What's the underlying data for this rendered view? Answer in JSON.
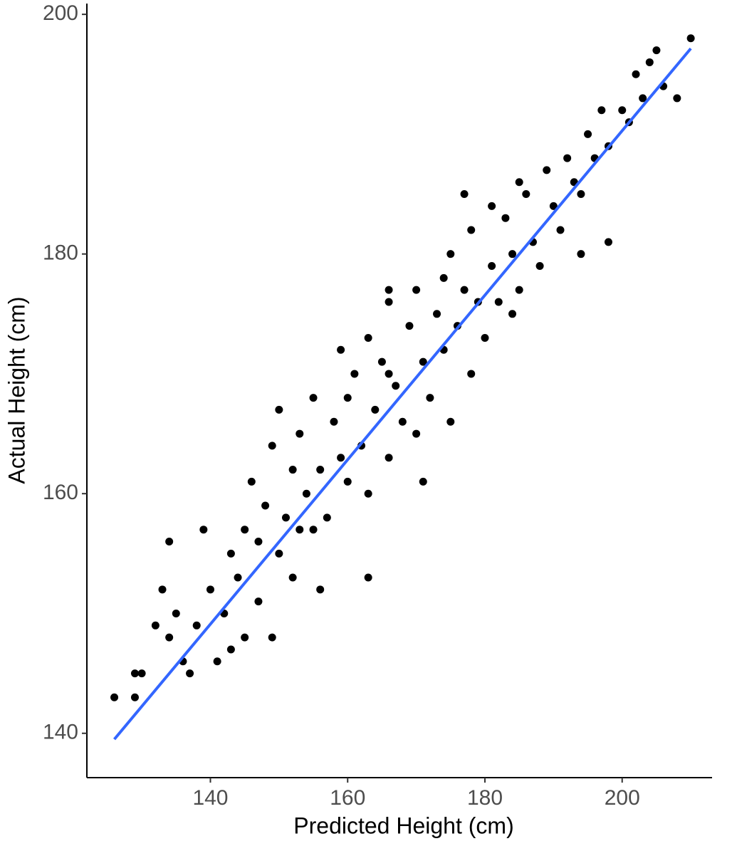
{
  "chart_data": {
    "type": "scatter",
    "x_label": "Predicted Height (cm)",
    "y_label": "Actual Height (cm)",
    "xlim": [
      122,
      213.1
    ],
    "ylim": [
      136.3,
      200.9
    ],
    "xticks": [
      140,
      160,
      180,
      200
    ],
    "yticks": [
      140,
      160,
      180,
      200
    ],
    "grid": false,
    "series": [
      {
        "type": "scatter",
        "color": "#000000",
        "x": [
          126,
          129,
          129,
          130,
          132,
          133,
          134,
          134,
          135,
          136,
          137,
          138,
          139,
          140,
          141,
          142,
          143,
          144,
          145,
          145,
          146,
          147,
          148,
          149,
          150,
          151,
          152,
          152,
          153,
          154,
          155,
          155,
          156,
          157,
          158,
          159,
          160,
          160,
          161,
          162,
          163,
          163,
          164,
          165,
          166,
          166,
          167,
          168,
          169,
          170,
          170,
          171,
          172,
          173,
          174,
          175,
          175,
          176,
          177,
          178,
          178,
          179,
          180,
          181,
          182,
          183,
          184,
          185,
          186,
          187,
          188,
          189,
          190,
          191,
          192,
          193,
          194,
          195,
          196,
          197,
          198,
          200,
          201,
          202,
          203,
          204,
          205,
          206,
          208,
          210,
          163,
          156,
          149,
          171,
          184,
          194,
          198,
          150,
          166,
          177,
          185,
          143,
          147,
          153,
          159,
          166,
          174,
          181
        ],
        "values": [
          143,
          143,
          145,
          145,
          149,
          152,
          156,
          148,
          150,
          146,
          145,
          149,
          157,
          152,
          146,
          150,
          155,
          153,
          148,
          157,
          161,
          151,
          159,
          164,
          155,
          158,
          153,
          162,
          165,
          160,
          157,
          168,
          162,
          158,
          166,
          172,
          161,
          168,
          170,
          164,
          160,
          173,
          167,
          171,
          163,
          176,
          169,
          166,
          174,
          165,
          177,
          171,
          168,
          175,
          172,
          166,
          180,
          174,
          177,
          170,
          182,
          176,
          173,
          179,
          176,
          183,
          180,
          177,
          185,
          181,
          179,
          187,
          184,
          182,
          188,
          186,
          185,
          190,
          188,
          192,
          189,
          192,
          191,
          195,
          193,
          196,
          197,
          194,
          193,
          198,
          153,
          152,
          148,
          161,
          175,
          180,
          181,
          167,
          177,
          185,
          186,
          147,
          156,
          157,
          163,
          170,
          178,
          184
        ]
      },
      {
        "type": "line",
        "color": "#3366ff",
        "x": [
          126,
          210
        ],
        "values": [
          139.5,
          197.15
        ]
      }
    ]
  }
}
